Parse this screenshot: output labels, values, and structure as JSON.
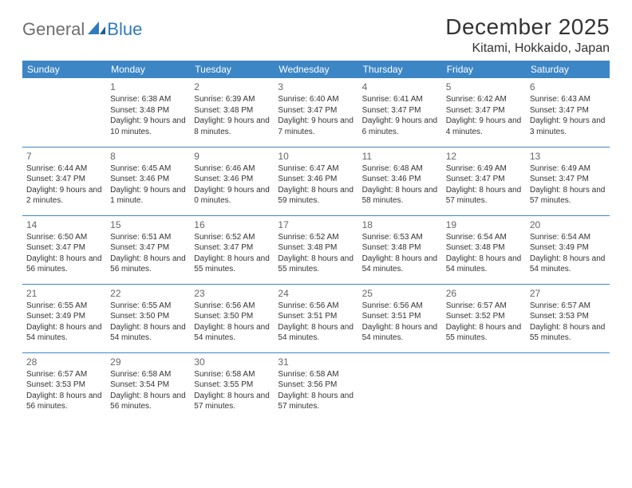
{
  "brand": {
    "part1": "General",
    "part2": "Blue"
  },
  "title": "December 2025",
  "location": "Kitami, Hokkaido, Japan",
  "colors": {
    "header_bg": "#3d86c6",
    "header_text": "#ffffff",
    "row_divider": "#3d86c6",
    "body_text": "#333333",
    "daynum": "#666666",
    "logo_gray": "#6e6e6e",
    "logo_blue": "#2f7bbf",
    "page_bg": "#ffffff"
  },
  "typography": {
    "title_fontsize": 28,
    "location_fontsize": 16,
    "weekday_fontsize": 12,
    "daynum_fontsize": 12,
    "body_fontsize": 10
  },
  "weekdays": [
    "Sunday",
    "Monday",
    "Tuesday",
    "Wednesday",
    "Thursday",
    "Friday",
    "Saturday"
  ],
  "start_offset": 1,
  "days": [
    {
      "n": 1,
      "sunrise": "6:38 AM",
      "sunset": "3:48 PM",
      "daylight": "9 hours and 10 minutes."
    },
    {
      "n": 2,
      "sunrise": "6:39 AM",
      "sunset": "3:48 PM",
      "daylight": "9 hours and 8 minutes."
    },
    {
      "n": 3,
      "sunrise": "6:40 AM",
      "sunset": "3:47 PM",
      "daylight": "9 hours and 7 minutes."
    },
    {
      "n": 4,
      "sunrise": "6:41 AM",
      "sunset": "3:47 PM",
      "daylight": "9 hours and 6 minutes."
    },
    {
      "n": 5,
      "sunrise": "6:42 AM",
      "sunset": "3:47 PM",
      "daylight": "9 hours and 4 minutes."
    },
    {
      "n": 6,
      "sunrise": "6:43 AM",
      "sunset": "3:47 PM",
      "daylight": "9 hours and 3 minutes."
    },
    {
      "n": 7,
      "sunrise": "6:44 AM",
      "sunset": "3:47 PM",
      "daylight": "9 hours and 2 minutes."
    },
    {
      "n": 8,
      "sunrise": "6:45 AM",
      "sunset": "3:46 PM",
      "daylight": "9 hours and 1 minute."
    },
    {
      "n": 9,
      "sunrise": "6:46 AM",
      "sunset": "3:46 PM",
      "daylight": "9 hours and 0 minutes."
    },
    {
      "n": 10,
      "sunrise": "6:47 AM",
      "sunset": "3:46 PM",
      "daylight": "8 hours and 59 minutes."
    },
    {
      "n": 11,
      "sunrise": "6:48 AM",
      "sunset": "3:46 PM",
      "daylight": "8 hours and 58 minutes."
    },
    {
      "n": 12,
      "sunrise": "6:49 AM",
      "sunset": "3:47 PM",
      "daylight": "8 hours and 57 minutes."
    },
    {
      "n": 13,
      "sunrise": "6:49 AM",
      "sunset": "3:47 PM",
      "daylight": "8 hours and 57 minutes."
    },
    {
      "n": 14,
      "sunrise": "6:50 AM",
      "sunset": "3:47 PM",
      "daylight": "8 hours and 56 minutes."
    },
    {
      "n": 15,
      "sunrise": "6:51 AM",
      "sunset": "3:47 PM",
      "daylight": "8 hours and 56 minutes."
    },
    {
      "n": 16,
      "sunrise": "6:52 AM",
      "sunset": "3:47 PM",
      "daylight": "8 hours and 55 minutes."
    },
    {
      "n": 17,
      "sunrise": "6:52 AM",
      "sunset": "3:48 PM",
      "daylight": "8 hours and 55 minutes."
    },
    {
      "n": 18,
      "sunrise": "6:53 AM",
      "sunset": "3:48 PM",
      "daylight": "8 hours and 54 minutes."
    },
    {
      "n": 19,
      "sunrise": "6:54 AM",
      "sunset": "3:48 PM",
      "daylight": "8 hours and 54 minutes."
    },
    {
      "n": 20,
      "sunrise": "6:54 AM",
      "sunset": "3:49 PM",
      "daylight": "8 hours and 54 minutes."
    },
    {
      "n": 21,
      "sunrise": "6:55 AM",
      "sunset": "3:49 PM",
      "daylight": "8 hours and 54 minutes."
    },
    {
      "n": 22,
      "sunrise": "6:55 AM",
      "sunset": "3:50 PM",
      "daylight": "8 hours and 54 minutes."
    },
    {
      "n": 23,
      "sunrise": "6:56 AM",
      "sunset": "3:50 PM",
      "daylight": "8 hours and 54 minutes."
    },
    {
      "n": 24,
      "sunrise": "6:56 AM",
      "sunset": "3:51 PM",
      "daylight": "8 hours and 54 minutes."
    },
    {
      "n": 25,
      "sunrise": "6:56 AM",
      "sunset": "3:51 PM",
      "daylight": "8 hours and 54 minutes."
    },
    {
      "n": 26,
      "sunrise": "6:57 AM",
      "sunset": "3:52 PM",
      "daylight": "8 hours and 55 minutes."
    },
    {
      "n": 27,
      "sunrise": "6:57 AM",
      "sunset": "3:53 PM",
      "daylight": "8 hours and 55 minutes."
    },
    {
      "n": 28,
      "sunrise": "6:57 AM",
      "sunset": "3:53 PM",
      "daylight": "8 hours and 56 minutes."
    },
    {
      "n": 29,
      "sunrise": "6:58 AM",
      "sunset": "3:54 PM",
      "daylight": "8 hours and 56 minutes."
    },
    {
      "n": 30,
      "sunrise": "6:58 AM",
      "sunset": "3:55 PM",
      "daylight": "8 hours and 57 minutes."
    },
    {
      "n": 31,
      "sunrise": "6:58 AM",
      "sunset": "3:56 PM",
      "daylight": "8 hours and 57 minutes."
    }
  ],
  "labels": {
    "sunrise": "Sunrise:",
    "sunset": "Sunset:",
    "daylight": "Daylight:"
  }
}
